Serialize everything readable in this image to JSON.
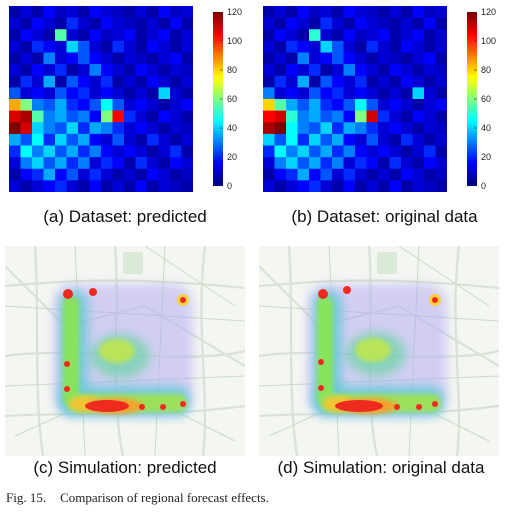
{
  "figure": {
    "label": "Fig. 15.",
    "text": "Comparison of regional forecast effects."
  },
  "chart_data": [
    {
      "type": "heatmap",
      "caption": "(a) Dataset: predicted",
      "colorbar": {
        "min": 0,
        "max": 120,
        "ticks": [
          0,
          20,
          40,
          60,
          80,
          100,
          120
        ],
        "colormap": "jet"
      },
      "grid": [
        [
          5,
          10,
          5,
          15,
          8,
          10,
          5,
          15,
          10,
          8,
          5,
          10,
          5,
          15,
          8,
          10
        ],
        [
          10,
          5,
          15,
          10,
          5,
          20,
          10,
          5,
          15,
          10,
          8,
          5,
          10,
          5,
          15,
          5
        ],
        [
          5,
          15,
          10,
          5,
          55,
          10,
          5,
          15,
          8,
          10,
          15,
          5,
          10,
          15,
          5,
          10
        ],
        [
          10,
          5,
          20,
          15,
          10,
          40,
          25,
          10,
          5,
          20,
          10,
          5,
          15,
          10,
          5,
          10
        ],
        [
          5,
          10,
          5,
          30,
          10,
          15,
          25,
          15,
          10,
          5,
          10,
          8,
          5,
          10,
          15,
          5
        ],
        [
          10,
          5,
          15,
          10,
          20,
          5,
          10,
          30,
          15,
          10,
          5,
          15,
          10,
          5,
          10,
          8
        ],
        [
          5,
          20,
          10,
          35,
          5,
          25,
          15,
          10,
          20,
          5,
          10,
          5,
          15,
          10,
          5,
          10
        ],
        [
          25,
          10,
          15,
          10,
          25,
          15,
          20,
          10,
          15,
          10,
          5,
          10,
          5,
          40,
          10,
          5
        ],
        [
          85,
          60,
          30,
          25,
          35,
          20,
          15,
          25,
          45,
          25,
          10,
          15,
          10,
          5,
          10,
          15
        ],
        [
          110,
          115,
          55,
          30,
          35,
          25,
          30,
          15,
          60,
          105,
          20,
          10,
          5,
          15,
          10,
          5
        ],
        [
          120,
          110,
          40,
          30,
          25,
          40,
          20,
          35,
          30,
          20,
          10,
          15,
          10,
          5,
          10,
          8
        ],
        [
          35,
          25,
          45,
          20,
          40,
          25,
          35,
          15,
          10,
          25,
          10,
          5,
          20,
          10,
          5,
          10
        ],
        [
          20,
          45,
          30,
          40,
          25,
          35,
          20,
          30,
          15,
          10,
          15,
          10,
          5,
          10,
          20,
          5
        ],
        [
          10,
          30,
          40,
          25,
          35,
          20,
          30,
          10,
          20,
          15,
          5,
          20,
          10,
          5,
          15,
          10
        ],
        [
          5,
          15,
          20,
          35,
          15,
          25,
          10,
          20,
          10,
          5,
          10,
          5,
          15,
          10,
          5,
          8
        ],
        [
          10,
          5,
          10,
          15,
          20,
          10,
          5,
          15,
          5,
          10,
          5,
          15,
          5,
          10,
          8,
          5
        ]
      ]
    },
    {
      "type": "heatmap",
      "caption": "(b) Dataset: original data",
      "colorbar": {
        "min": 0,
        "max": 120,
        "ticks": [
          0,
          20,
          40,
          60,
          80,
          100,
          120
        ],
        "colormap": "jet"
      },
      "grid": [
        [
          5,
          10,
          5,
          15,
          8,
          10,
          5,
          15,
          10,
          8,
          5,
          10,
          5,
          15,
          8,
          10
        ],
        [
          10,
          5,
          15,
          10,
          5,
          20,
          10,
          5,
          15,
          10,
          8,
          5,
          10,
          5,
          15,
          5
        ],
        [
          5,
          15,
          10,
          5,
          50,
          10,
          5,
          15,
          8,
          10,
          15,
          5,
          10,
          15,
          5,
          10
        ],
        [
          10,
          5,
          20,
          15,
          10,
          40,
          25,
          10,
          5,
          20,
          10,
          5,
          15,
          10,
          5,
          10
        ],
        [
          5,
          10,
          5,
          30,
          10,
          15,
          25,
          15,
          10,
          5,
          10,
          8,
          5,
          10,
          15,
          5
        ],
        [
          10,
          5,
          15,
          10,
          20,
          5,
          10,
          30,
          15,
          10,
          5,
          15,
          10,
          5,
          10,
          8
        ],
        [
          5,
          20,
          10,
          35,
          5,
          25,
          15,
          10,
          20,
          5,
          10,
          5,
          15,
          10,
          5,
          10
        ],
        [
          30,
          10,
          15,
          10,
          25,
          15,
          20,
          10,
          15,
          10,
          5,
          10,
          5,
          40,
          10,
          5
        ],
        [
          80,
          55,
          35,
          25,
          35,
          20,
          15,
          25,
          45,
          25,
          10,
          15,
          10,
          5,
          10,
          15
        ],
        [
          105,
          110,
          50,
          30,
          35,
          25,
          30,
          15,
          60,
          110,
          20,
          10,
          5,
          15,
          10,
          5
        ],
        [
          115,
          120,
          45,
          30,
          25,
          40,
          20,
          35,
          30,
          20,
          10,
          15,
          10,
          5,
          10,
          8
        ],
        [
          40,
          25,
          45,
          20,
          40,
          25,
          35,
          15,
          10,
          25,
          10,
          5,
          20,
          10,
          5,
          10
        ],
        [
          20,
          45,
          30,
          40,
          25,
          35,
          20,
          30,
          15,
          10,
          15,
          10,
          5,
          10,
          20,
          5
        ],
        [
          10,
          30,
          40,
          25,
          35,
          20,
          30,
          10,
          20,
          15,
          5,
          20,
          10,
          5,
          15,
          10
        ],
        [
          5,
          15,
          20,
          35,
          15,
          25,
          10,
          20,
          10,
          5,
          10,
          5,
          15,
          10,
          5,
          8
        ],
        [
          10,
          5,
          10,
          15,
          20,
          10,
          5,
          15,
          5,
          10,
          5,
          15,
          5,
          10,
          8,
          5
        ]
      ]
    }
  ],
  "simulation_panels": [
    {
      "caption": "(c) Simulation: predicted"
    },
    {
      "caption": "(d) Simulation: original data"
    }
  ]
}
